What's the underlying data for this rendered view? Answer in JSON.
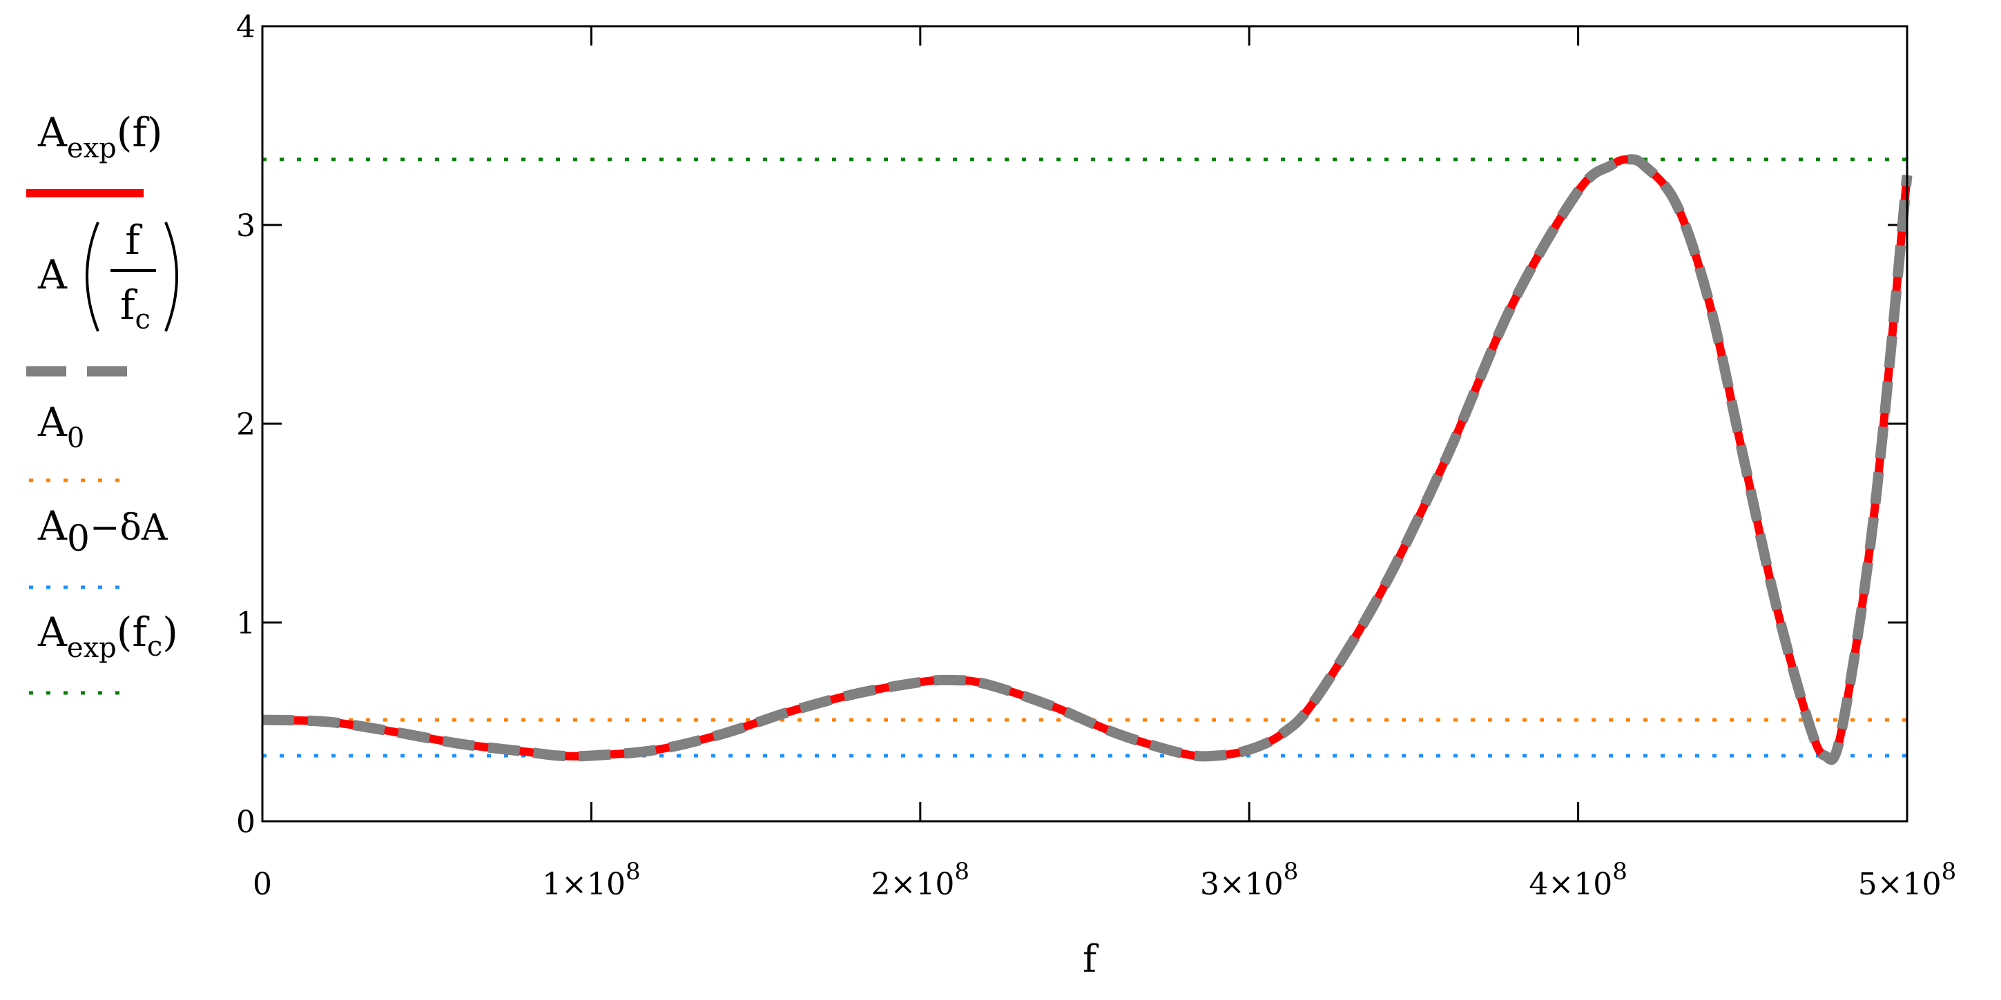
{
  "chart_data": {
    "type": "line",
    "xlabel": "f",
    "x_range": [
      0,
      500000000
    ],
    "y_range": [
      0,
      4
    ],
    "x_ticks": [
      {
        "value": 0,
        "base": "0",
        "exp": ""
      },
      {
        "value": 100000000,
        "base": "1×10",
        "exp": "8"
      },
      {
        "value": 200000000,
        "base": "2×10",
        "exp": "8"
      },
      {
        "value": 300000000,
        "base": "3×10",
        "exp": "8"
      },
      {
        "value": 400000000,
        "base": "4×10",
        "exp": "8"
      },
      {
        "value": 500000000,
        "base": "5×10",
        "exp": "8"
      }
    ],
    "y_ticks": [
      {
        "value": 0,
        "label": "0"
      },
      {
        "value": 1,
        "label": "1"
      },
      {
        "value": 2,
        "label": "2"
      },
      {
        "value": 3,
        "label": "3"
      },
      {
        "value": 4,
        "label": "4"
      }
    ],
    "legend": [
      {
        "key": "aexp",
        "base": "A",
        "sub": "exp",
        "tail": "(f)",
        "style": "solid",
        "color": "#ff0000"
      },
      {
        "key": "a_ratio",
        "base": "A",
        "num": "f",
        "den": "f",
        "den_sub": "c",
        "style": "dash",
        "color": "#808080"
      },
      {
        "key": "a0",
        "base": "A",
        "sub": "0",
        "tail": "",
        "style": "dotted",
        "color": "#ff8000"
      },
      {
        "key": "a0_minus",
        "base": "A",
        "sub": "0",
        "tail": "−δA",
        "style": "dotted",
        "color": "#1e90ff"
      },
      {
        "key": "aexp_fc",
        "base": "A",
        "sub": "exp",
        "paren_base": "f",
        "paren_sub": "c",
        "style": "dotted",
        "color": "#008000"
      }
    ],
    "series": [
      {
        "style": "solid",
        "color": "#ff0000",
        "x": [
          0,
          20000000,
          40000000,
          60000000,
          80000000,
          90000000,
          100000000,
          120000000,
          140000000,
          160000000,
          180000000,
          200000000,
          210000000,
          220000000,
          240000000,
          260000000,
          280000000,
          290000000,
          300000000,
          310000000,
          320000000,
          340000000,
          360000000,
          380000000,
          400000000,
          410000000,
          415000000,
          420000000,
          430000000,
          440000000,
          450000000,
          460000000,
          470000000,
          475000000,
          480000000,
          490000000,
          500000000
        ],
        "y": [
          0.51,
          0.5,
          0.45,
          0.39,
          0.35,
          0.33,
          0.33,
          0.36,
          0.44,
          0.55,
          0.64,
          0.7,
          0.71,
          0.69,
          0.58,
          0.44,
          0.34,
          0.33,
          0.36,
          0.44,
          0.61,
          1.15,
          1.83,
          2.6,
          3.17,
          3.3,
          3.33,
          3.3,
          3.1,
          2.6,
          1.85,
          1.1,
          0.5,
          0.33,
          0.45,
          1.55,
          3.25
        ]
      },
      {
        "style": "dash",
        "color": "#808080",
        "x": [
          0,
          20000000,
          40000000,
          60000000,
          80000000,
          90000000,
          100000000,
          120000000,
          140000000,
          160000000,
          180000000,
          200000000,
          210000000,
          220000000,
          240000000,
          260000000,
          280000000,
          290000000,
          300000000,
          310000000,
          320000000,
          340000000,
          360000000,
          380000000,
          400000000,
          410000000,
          415000000,
          420000000,
          430000000,
          440000000,
          450000000,
          460000000,
          470000000,
          475000000,
          480000000,
          490000000,
          500000000
        ],
        "y": [
          0.51,
          0.5,
          0.45,
          0.39,
          0.35,
          0.33,
          0.33,
          0.36,
          0.44,
          0.55,
          0.64,
          0.7,
          0.71,
          0.69,
          0.58,
          0.44,
          0.34,
          0.33,
          0.36,
          0.44,
          0.61,
          1.15,
          1.83,
          2.6,
          3.17,
          3.3,
          3.33,
          3.3,
          3.1,
          2.6,
          1.85,
          1.1,
          0.5,
          0.33,
          0.45,
          1.55,
          3.25
        ]
      },
      {
        "style": "dotted",
        "color": "#ff8000",
        "x": [
          0,
          500000000
        ],
        "y": [
          0.51,
          0.51
        ]
      },
      {
        "style": "dotted",
        "color": "#1e90ff",
        "x": [
          0,
          500000000
        ],
        "y": [
          0.33,
          0.33
        ]
      },
      {
        "style": "dotted",
        "color": "#008000",
        "x": [
          0,
          500000000
        ],
        "y": [
          3.33,
          3.33
        ]
      }
    ]
  }
}
